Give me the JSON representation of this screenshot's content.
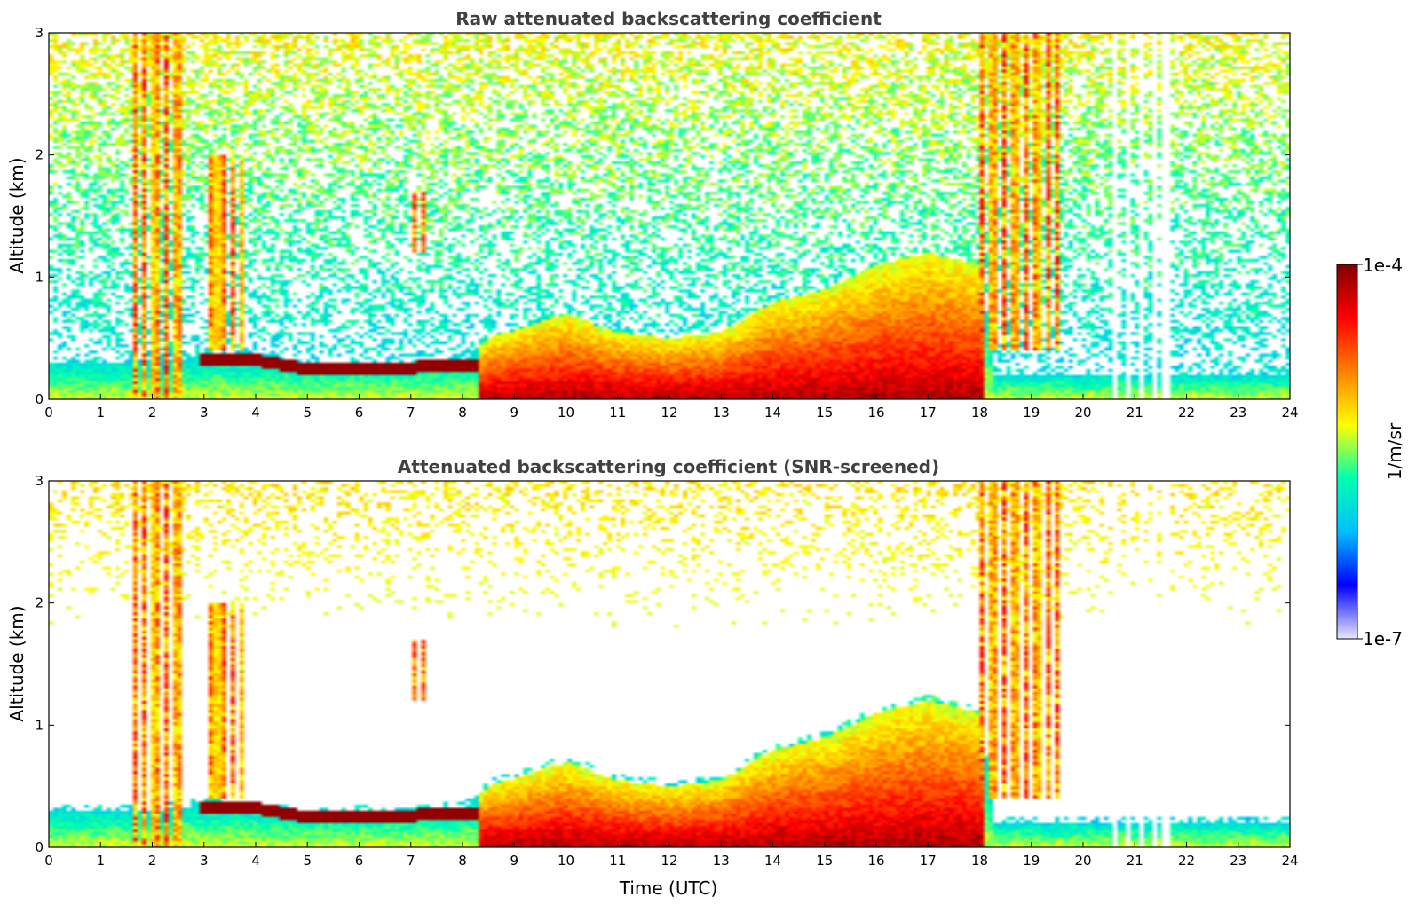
{
  "chart_data": {
    "type": "heatmap",
    "panels": [
      {
        "title": "Raw attenuated backscattering coefficient",
        "ylabel": "Altitude (km)",
        "xlabel": "",
        "xlim": [
          0,
          24
        ],
        "ylim": [
          0,
          3
        ],
        "xticks": [
          "0",
          "1",
          "2",
          "3",
          "4",
          "5",
          "6",
          "7",
          "8",
          "9",
          "10",
          "11",
          "12",
          "13",
          "14",
          "15",
          "16",
          "17",
          "18",
          "19",
          "20",
          "21",
          "22",
          "23",
          "24"
        ],
        "yticks": [
          "0",
          "1",
          "2",
          "3"
        ],
        "screened": false
      },
      {
        "title": "Attenuated backscattering coefficient (SNR-screened)",
        "ylabel": "Altitude (km)",
        "xlabel": "Time (UTC)",
        "xlim": [
          0,
          24
        ],
        "ylim": [
          0,
          3
        ],
        "xticks": [
          "0",
          "1",
          "2",
          "3",
          "4",
          "5",
          "6",
          "7",
          "8",
          "9",
          "10",
          "11",
          "12",
          "13",
          "14",
          "15",
          "16",
          "17",
          "18",
          "19",
          "20",
          "21",
          "22",
          "23",
          "24"
        ],
        "yticks": [
          "0",
          "1",
          "2",
          "3"
        ],
        "screened": true
      }
    ],
    "colorbar": {
      "label": "1/m/sr",
      "max_label": "1e-4",
      "min_label": "1e-7",
      "scale": "log",
      "range": [
        1e-07,
        0.0001
      ],
      "colormap": [
        "#e8e8f8",
        "#0000ff",
        "#00bfff",
        "#00ffb0",
        "#ffff00",
        "#ff8000",
        "#ff0000",
        "#800000"
      ]
    },
    "features": {
      "boundary_layer_top_km": [
        [
          0,
          0.3
        ],
        [
          2,
          0.3
        ],
        [
          3,
          0.35
        ],
        [
          5,
          0.28
        ],
        [
          7,
          0.3
        ],
        [
          8,
          0.32
        ],
        [
          8.5,
          0.5
        ],
        [
          10,
          0.7
        ],
        [
          11,
          0.55
        ],
        [
          12,
          0.5
        ],
        [
          13,
          0.55
        ],
        [
          14,
          0.8
        ],
        [
          15,
          0.9
        ],
        [
          16,
          1.1
        ],
        [
          17,
          1.2
        ],
        [
          18,
          1.1
        ],
        [
          18.3,
          0.2
        ],
        [
          24,
          0.2
        ]
      ],
      "residual_layer_km": [
        [
          3,
          0.33
        ],
        [
          4,
          0.32
        ],
        [
          5,
          0.25
        ],
        [
          6,
          0.24
        ],
        [
          7,
          0.26
        ],
        [
          8,
          0.28
        ]
      ],
      "cloud_segments": [
        {
          "time": [
            1.6,
            2.6
          ],
          "alt": [
            0,
            3
          ]
        },
        {
          "time": [
            3.1,
            3.8
          ],
          "alt": [
            0.4,
            2.0
          ]
        },
        {
          "time": [
            7.0,
            7.4
          ],
          "alt": [
            1.2,
            1.7
          ]
        },
        {
          "time": [
            18.0,
            19.6
          ],
          "alt": [
            0.4,
            3.0
          ]
        }
      ],
      "missing_data_hours": [
        20.6,
        20.9,
        21.1,
        21.4,
        21.6
      ]
    }
  }
}
